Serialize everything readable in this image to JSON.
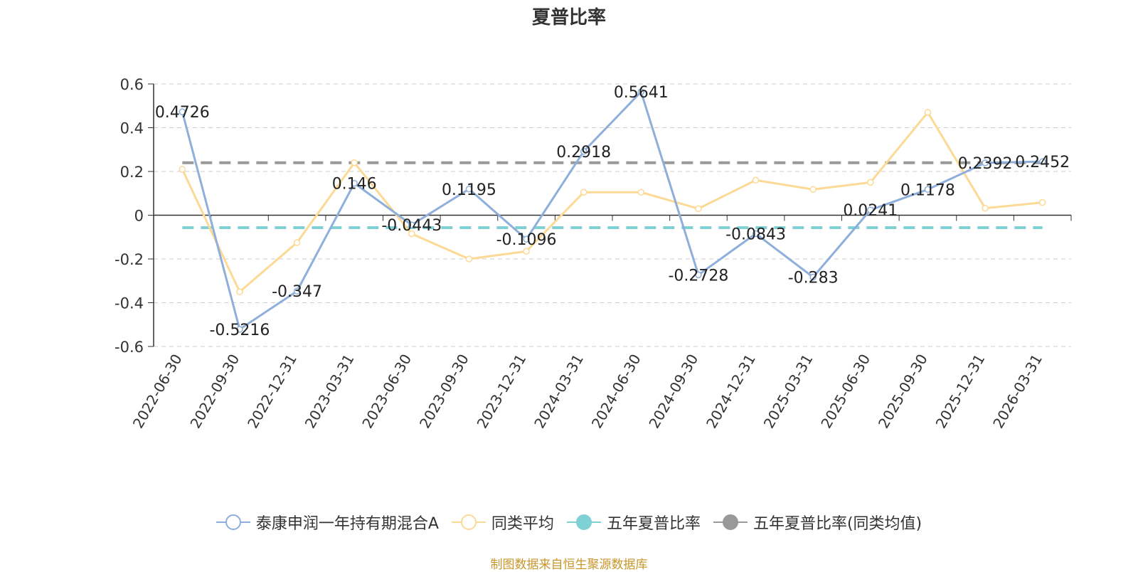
{
  "chart_data": {
    "type": "line",
    "title": "夏普比率",
    "categories": [
      "2022-06-30",
      "2022-09-30",
      "2022-12-31",
      "2023-03-31",
      "2023-06-30",
      "2023-09-30",
      "2023-12-31",
      "2024-03-31",
      "2024-06-30",
      "2024-09-30",
      "2024-12-31",
      "2025-03-31",
      "2025-06-30",
      "2025-09-30",
      "2025-12-31",
      "2026-03-31"
    ],
    "ylim": [
      -0.6,
      0.6
    ],
    "yticks": [
      "0.6",
      "0.4",
      "0.2",
      "0",
      "-0.2",
      "-0.4",
      "-0.6"
    ],
    "grid": true,
    "legend_position": "bottom",
    "series": [
      {
        "name": "泰康申润一年持有期混合A",
        "color": "#8eaedb",
        "marker": "hollow-circle",
        "values": [
          0.4726,
          -0.5216,
          -0.347,
          0.146,
          -0.0443,
          0.1195,
          -0.1096,
          0.2918,
          0.5641,
          -0.2728,
          -0.0843,
          -0.283,
          0.0241,
          0.1178,
          0.2392,
          0.2452
        ],
        "labels": [
          "0.4726",
          "-0.5216",
          "-0.347",
          "0.146",
          "-0.0443",
          "0.1195",
          "-0.1096",
          "0.2918",
          "0.5641",
          "-0.2728",
          "-0.0843",
          "-0.283",
          "0.0241",
          "0.1178",
          "0.2392",
          "0.2452"
        ]
      },
      {
        "name": "同类平均",
        "color": "#fcd995",
        "marker": "hollow-circle",
        "values": [
          0.21,
          -0.35,
          -0.125,
          0.24,
          -0.085,
          -0.2,
          -0.165,
          0.105,
          0.105,
          0.03,
          0.16,
          0.118,
          0.15,
          0.47,
          0.032,
          0.058
        ]
      },
      {
        "name": "五年夏普比率",
        "color": "#7fd1d6",
        "marker": "filled-circle",
        "style": "dashed",
        "values": [
          -0.057,
          -0.057,
          -0.057,
          -0.057,
          -0.057,
          -0.057,
          -0.057,
          -0.057,
          -0.057,
          -0.057,
          -0.057,
          -0.057,
          -0.057,
          -0.057,
          -0.057,
          -0.057
        ]
      },
      {
        "name": "五年夏普比率(同类均值)",
        "color": "#999999",
        "marker": "filled-circle",
        "style": "dashed",
        "values": [
          0.24,
          0.24,
          0.24,
          0.24,
          0.24,
          0.24,
          0.24,
          0.24,
          0.24,
          0.24,
          0.24,
          0.24,
          0.24,
          0.24,
          0.24,
          0.24
        ]
      }
    ]
  },
  "footer": {
    "source": "制图数据来自恒生聚源数据库"
  }
}
